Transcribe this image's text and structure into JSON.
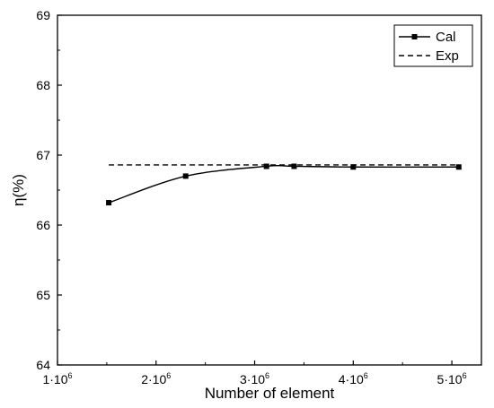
{
  "chart_data": {
    "type": "line",
    "xlabel": "Number of element",
    "ylabel": "η(%)",
    "xlim": [
      1000000,
      5300000
    ],
    "ylim": [
      64,
      69
    ],
    "x_ticks": [
      {
        "value": 1000000,
        "base": "1·10",
        "exp": "6"
      },
      {
        "value": 2000000,
        "base": "2·10",
        "exp": "6"
      },
      {
        "value": 3000000,
        "base": "3·10",
        "exp": "6"
      },
      {
        "value": 4000000,
        "base": "4·10",
        "exp": "6"
      },
      {
        "value": 5000000,
        "base": "5·10",
        "exp": "6"
      }
    ],
    "y_ticks": [
      {
        "value": 64,
        "label": "64"
      },
      {
        "value": 65,
        "label": "65"
      },
      {
        "value": 66,
        "label": "66"
      },
      {
        "value": 67,
        "label": "67"
      },
      {
        "value": 68,
        "label": "68"
      },
      {
        "value": 69,
        "label": "69"
      }
    ],
    "legend_position": "top-right",
    "grid": false,
    "series": [
      {
        "name": "Cal",
        "style": "solid-line-square-markers",
        "color": "#000000",
        "x": [
          1520000,
          2300000,
          3120000,
          3400000,
          4000000,
          5070000
        ],
        "y": [
          66.32,
          66.7,
          66.84,
          66.84,
          66.83,
          66.83
        ]
      },
      {
        "name": "Exp",
        "style": "dashed-line",
        "color": "#000000",
        "x": [
          1520000,
          5070000
        ],
        "y": [
          66.86,
          66.86
        ]
      }
    ]
  }
}
